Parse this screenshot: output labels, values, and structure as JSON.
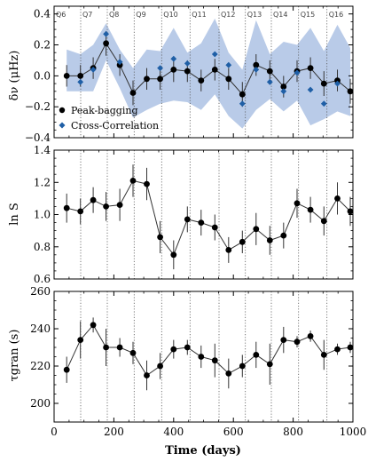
{
  "chart_data": [
    {
      "type": "scatter",
      "ylabel": "δν (μHz)",
      "xlim": [
        0,
        1000
      ],
      "ylim": [
        -0.4,
        0.45
      ],
      "yticks": [
        -0.4,
        -0.2,
        0.0,
        0.2,
        0.4
      ],
      "ytick_labels": [
        "−0.4",
        "−0.2",
        "0.0",
        "0.2",
        "0.4"
      ],
      "quarters": {
        "labels": [
          "Q6",
          "Q7",
          "Q8",
          "Q9",
          "Q10",
          "Q11",
          "Q12",
          "Q13",
          "Q14",
          "Q15",
          "Q16"
        ],
        "label_x": [
          0,
          89,
          178,
          268,
          360,
          455,
          552,
          640,
          727,
          818,
          913
        ],
        "boundaries": [
          89,
          178,
          268,
          360,
          455,
          552,
          640,
          727,
          818,
          913
        ]
      },
      "legend_position": "lower-left",
      "series": [
        {
          "name": "Peak-bagging",
          "color": "#000000",
          "marker": "circle",
          "x": [
            42,
            88,
            131,
            174,
            220,
            264,
            310,
            355,
            400,
            446,
            492,
            538,
            584,
            630,
            676,
            722,
            768,
            813,
            858,
            903,
            948,
            991
          ],
          "y": [
            0.0,
            0.0,
            0.05,
            0.21,
            0.07,
            -0.11,
            -0.02,
            -0.02,
            0.04,
            0.03,
            -0.03,
            0.04,
            -0.02,
            -0.12,
            0.07,
            0.03,
            -0.07,
            0.03,
            0.05,
            -0.05,
            -0.03,
            -0.1
          ],
          "yerr": [
            0.07,
            0.07,
            0.07,
            0.08,
            0.07,
            0.08,
            0.07,
            0.07,
            0.08,
            0.07,
            0.07,
            0.07,
            0.07,
            0.08,
            0.07,
            0.07,
            0.07,
            0.07,
            0.07,
            0.08,
            0.07,
            0.08
          ]
        },
        {
          "name": "Cross-Correlation",
          "color": "#1f5fa6",
          "marker": "diamond",
          "x": [
            88,
            131,
            174,
            220,
            355,
            400,
            446,
            538,
            584,
            630,
            676,
            722,
            768,
            813,
            858,
            903,
            948
          ],
          "y": [
            -0.04,
            0.04,
            0.27,
            0.09,
            0.05,
            0.11,
            0.08,
            0.14,
            0.07,
            -0.18,
            0.04,
            -0.04,
            -0.1,
            0.02,
            -0.09,
            -0.18,
            -0.05
          ]
        }
      ],
      "band": {
        "color": "#b9cbe8",
        "x": [
          42,
          88,
          131,
          174,
          220,
          264,
          310,
          355,
          400,
          446,
          492,
          538,
          584,
          630,
          676,
          722,
          768,
          813,
          858,
          903,
          948,
          991
        ],
        "upper": [
          0.17,
          0.14,
          0.2,
          0.34,
          0.17,
          0.05,
          0.17,
          0.16,
          0.31,
          0.15,
          0.21,
          0.37,
          0.15,
          0.04,
          0.36,
          0.14,
          0.22,
          0.2,
          0.31,
          0.16,
          0.33,
          0.18
        ],
        "lower": [
          -0.1,
          -0.1,
          -0.1,
          0.1,
          -0.08,
          -0.27,
          -0.22,
          -0.18,
          -0.16,
          -0.17,
          -0.22,
          -0.12,
          -0.26,
          -0.34,
          -0.22,
          -0.15,
          -0.23,
          -0.16,
          -0.32,
          -0.28,
          -0.23,
          -0.26
        ]
      }
    },
    {
      "type": "line",
      "ylabel": "ln S",
      "xlim": [
        0,
        1000
      ],
      "ylim": [
        0.6,
        1.4
      ],
      "yticks": [
        0.6,
        0.8,
        1.0,
        1.2,
        1.4
      ],
      "ytick_labels": [
        "0.6",
        "0.8",
        "1.0",
        "1.2",
        "1.4"
      ],
      "series": [
        {
          "x": [
            42,
            88,
            131,
            174,
            220,
            264,
            310,
            355,
            400,
            446,
            492,
            538,
            584,
            630,
            676,
            722,
            768,
            813,
            858,
            903,
            948,
            991
          ],
          "y": [
            1.04,
            1.02,
            1.09,
            1.05,
            1.06,
            1.21,
            1.19,
            0.86,
            0.75,
            0.97,
            0.95,
            0.92,
            0.78,
            0.83,
            0.91,
            0.84,
            0.87,
            1.07,
            1.03,
            0.96,
            1.1,
            1.02
          ],
          "yerr": [
            0.09,
            0.08,
            0.08,
            0.09,
            0.1,
            0.1,
            0.1,
            0.1,
            0.09,
            0.08,
            0.08,
            0.08,
            0.08,
            0.07,
            0.1,
            0.09,
            0.08,
            0.09,
            0.08,
            0.09,
            0.1,
            0.09
          ]
        }
      ]
    },
    {
      "type": "line",
      "ylabel": "τgran (s)",
      "xlabel": "Time (days)",
      "xlim": [
        0,
        1000
      ],
      "xticks": [
        0,
        200,
        400,
        600,
        800,
        1000
      ],
      "xtick_labels": [
        "0",
        "200",
        "400",
        "600",
        "800",
        "1000"
      ],
      "ylim": [
        190,
        260
      ],
      "yticks": [
        200,
        220,
        240,
        260
      ],
      "ytick_labels": [
        "200",
        "220",
        "240",
        "260"
      ],
      "series": [
        {
          "x": [
            42,
            88,
            131,
            174,
            220,
            264,
            310,
            355,
            400,
            446,
            492,
            538,
            584,
            630,
            676,
            722,
            768,
            813,
            858,
            903,
            948,
            991
          ],
          "y": [
            218,
            234,
            242,
            230,
            230,
            227,
            215,
            220,
            229,
            230,
            225,
            223,
            216,
            220,
            226,
            221,
            234,
            233,
            236,
            226,
            229,
            230
          ],
          "yerr": [
            7,
            10,
            4,
            10,
            5,
            6,
            8,
            7,
            5,
            4,
            6,
            9,
            8,
            6,
            7,
            11,
            7,
            3,
            3,
            8,
            3,
            3
          ]
        }
      ]
    }
  ]
}
